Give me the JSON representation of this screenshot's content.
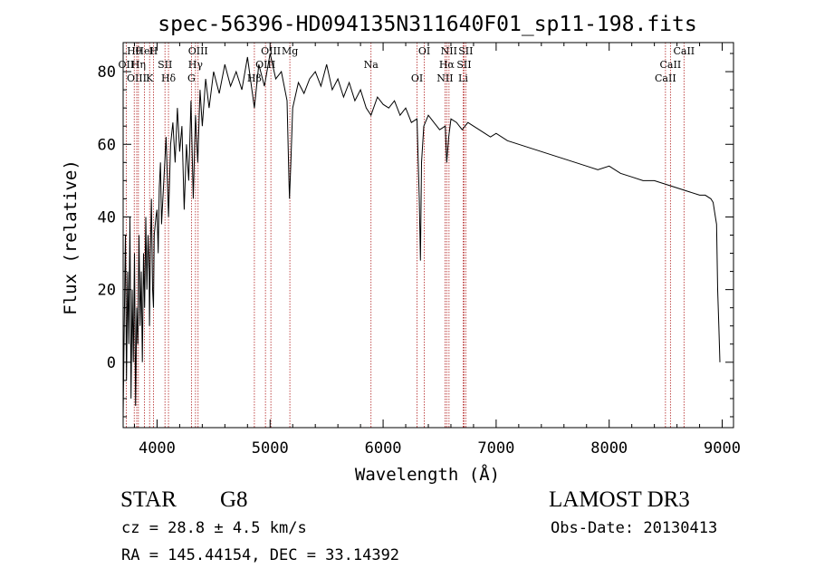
{
  "chart_data": {
    "type": "line",
    "title": "spec-56396-HD094135N311640F01_sp11-198.fits",
    "xlabel": "Wavelength (Å)",
    "ylabel": "Flux (relative)",
    "xlim": [
      3700,
      9100
    ],
    "ylim": [
      -18,
      88
    ],
    "xticks": [
      4000,
      5000,
      6000,
      7000,
      8000,
      9000
    ],
    "yticks": [
      0,
      20,
      40,
      60,
      80
    ],
    "grid": false,
    "series": [
      {
        "color": "#000000",
        "x": [
          3700,
          3710,
          3720,
          3730,
          3740,
          3750,
          3760,
          3770,
          3780,
          3790,
          3800,
          3810,
          3820,
          3830,
          3840,
          3850,
          3860,
          3870,
          3880,
          3890,
          3900,
          3910,
          3920,
          3930,
          3933,
          3940,
          3950,
          3960,
          3968,
          3975,
          3990,
          4000,
          4010,
          4020,
          4030,
          4040,
          4060,
          4080,
          4101,
          4120,
          4140,
          4160,
          4180,
          4200,
          4220,
          4240,
          4260,
          4280,
          4300,
          4320,
          4340,
          4360,
          4380,
          4400,
          4430,
          4460,
          4500,
          4550,
          4600,
          4650,
          4700,
          4750,
          4800,
          4861,
          4900,
          4950,
          5000,
          5050,
          5100,
          5150,
          5167,
          5172,
          5184,
          5200,
          5250,
          5300,
          5350,
          5400,
          5450,
          5500,
          5550,
          5600,
          5650,
          5700,
          5750,
          5800,
          5850,
          5893,
          5950,
          6000,
          6050,
          6100,
          6150,
          6200,
          6250,
          6300,
          6320,
          6330,
          6340,
          6360,
          6400,
          6450,
          6500,
          6550,
          6563,
          6580,
          6600,
          6650,
          6700,
          6750,
          6800,
          6850,
          6900,
          6950,
          7000,
          7100,
          7200,
          7300,
          7400,
          7500,
          7600,
          7700,
          7800,
          7900,
          8000,
          8100,
          8200,
          8300,
          8400,
          8500,
          8600,
          8700,
          8800,
          8850,
          8900,
          8920,
          8940,
          8950,
          8960,
          8970,
          8980
        ],
        "y": [
          -15,
          10,
          35,
          -5,
          25,
          5,
          40,
          -10,
          20,
          0,
          30,
          -12,
          15,
          5,
          35,
          10,
          25,
          0,
          30,
          15,
          40,
          20,
          35,
          25,
          10,
          30,
          45,
          20,
          15,
          35,
          40,
          42,
          30,
          48,
          55,
          38,
          50,
          62,
          40,
          60,
          66,
          55,
          70,
          58,
          65,
          42,
          60,
          50,
          72,
          45,
          68,
          55,
          75,
          65,
          78,
          70,
          80,
          74,
          82,
          76,
          80,
          75,
          84,
          70,
          82,
          76,
          85,
          78,
          80,
          72,
          50,
          45,
          55,
          70,
          77,
          74,
          78,
          80,
          76,
          82,
          75,
          78,
          73,
          77,
          72,
          75,
          70,
          68,
          73,
          71,
          70,
          72,
          68,
          70,
          66,
          67,
          45,
          28,
          55,
          65,
          68,
          66,
          64,
          65,
          55,
          62,
          67,
          66,
          64,
          66,
          65,
          64,
          63,
          62,
          63,
          61,
          60,
          59,
          58,
          57,
          56,
          55,
          54,
          53,
          54,
          52,
          51,
          50,
          50,
          49,
          48,
          47,
          46,
          46,
          45,
          44,
          40,
          38,
          20,
          10,
          0
        ]
      }
    ],
    "line_marks": {
      "color": "#b22222",
      "lines": [
        {
          "label": "Hθ",
          "x": 3798
        },
        {
          "label": "OII",
          "x": 3727
        },
        {
          "label": "OIII",
          "x": 3820
        },
        {
          "label": "HeI",
          "x": 3889
        },
        {
          "label": "Hη",
          "x": 3835
        },
        {
          "label": "K",
          "x": 3934
        },
        {
          "label": "H",
          "x": 3968
        },
        {
          "label": "SII",
          "x": 4070
        },
        {
          "label": "Hδ",
          "x": 4101
        },
        {
          "label": "OIII",
          "x": 4363
        },
        {
          "label": "Hγ",
          "x": 4340
        },
        {
          "label": "G",
          "x": 4304
        },
        {
          "label": "OIII",
          "x": 5007
        },
        {
          "label": "OIII",
          "x": 4959
        },
        {
          "label": "Hβ",
          "x": 4861
        },
        {
          "label": "Mg",
          "x": 5175
        },
        {
          "label": "Na",
          "x": 5893
        },
        {
          "label": "OI",
          "x": 6300
        },
        {
          "label": "OI",
          "x": 6364
        },
        {
          "label": "Hα",
          "x": 6563
        },
        {
          "label": "NII",
          "x": 6548
        },
        {
          "label": "NII",
          "x": 6583
        },
        {
          "label": "SII",
          "x": 6716
        },
        {
          "label": "Li",
          "x": 6708
        },
        {
          "label": "SII",
          "x": 6731
        },
        {
          "label": "CaII",
          "x": 8542
        },
        {
          "label": "CaII",
          "x": 8498
        },
        {
          "label": "CaII",
          "x": 8662
        }
      ]
    }
  },
  "info": {
    "class": "STAR",
    "subclass": "G8",
    "survey": "LAMOST DR3",
    "cz": "cz = 28.8 ± 4.5 km/s",
    "obs_date": "Obs-Date: 20130413",
    "coords": "RA = 145.44154, DEC =  33.14392"
  }
}
